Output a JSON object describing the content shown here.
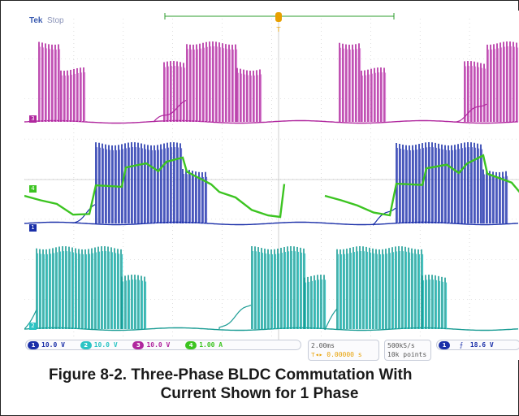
{
  "header": {
    "brand": "Tek",
    "status": "Stop"
  },
  "channels": [
    {
      "id": "1",
      "scale": "10.0 V",
      "color": "#1a2fa8"
    },
    {
      "id": "2",
      "scale": "10.0 V",
      "color": "#2bc4c4"
    },
    {
      "id": "3",
      "scale": "10.0 V",
      "color": "#b0279e"
    },
    {
      "id": "4",
      "scale": "1.00 A",
      "color": "#3cc421"
    }
  ],
  "ch_markers": {
    "ch1": "1",
    "ch2": "2",
    "ch3": "3",
    "ch4": "4"
  },
  "trigger_marker": "T",
  "timebase": {
    "time_per_div": "2.00ms",
    "trigger_offset": "0.00000 s"
  },
  "acquisition": {
    "sample_rate": "500kS/s",
    "record_length": "10k points"
  },
  "trigger_readout": {
    "source": "1",
    "slope_icon": "rising-edge",
    "level": "18.6 V"
  },
  "caption": {
    "line1": "Figure 8-2. Three-Phase BLDC Commutation With",
    "line2": "Current Shown for 1 Phase"
  },
  "colors": {
    "ch1": "#1a2fa8",
    "ch1_light": "#5b63c9",
    "ch2": "#2bc4c4",
    "ch2_dark": "#1a9c94",
    "ch3": "#b0279e",
    "ch3_light": "#d67ad0",
    "ch4": "#3cc421",
    "grid": "#c9c9c9",
    "zoom_bar": "#2e9e2e",
    "trigger": "#e8a000"
  }
}
